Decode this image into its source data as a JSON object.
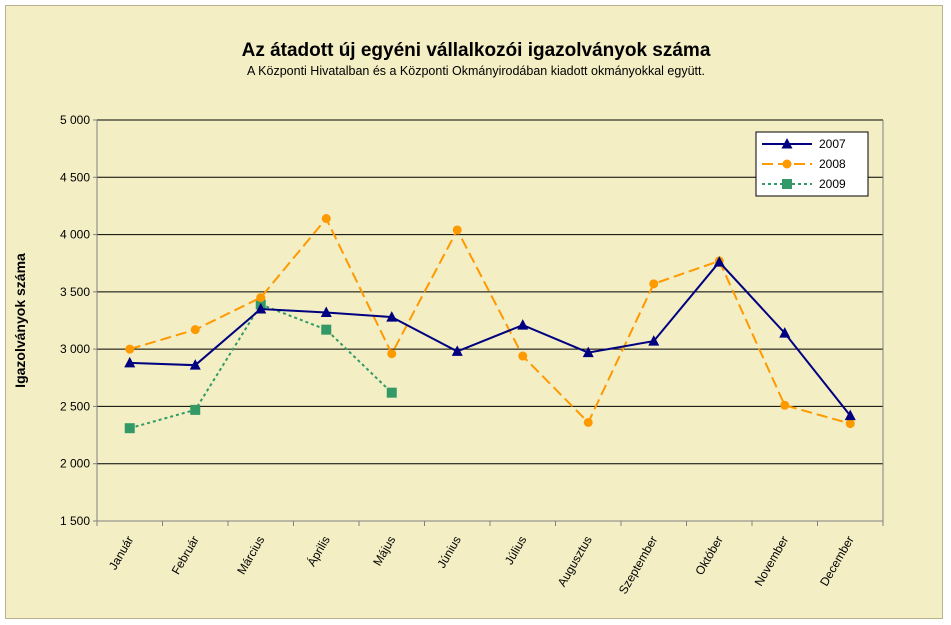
{
  "chart_data": {
    "type": "line",
    "title": "Az átadott új egyéni vállalkozói  igazolványok száma",
    "subtitle": "A Központi Hivatalban és a Központi Okmányirodában kiadott okmányokkal együtt.",
    "xlabel": "",
    "ylabel": "Igazolványok száma",
    "ylim": [
      1500,
      5000
    ],
    "yticks": [
      1500,
      2000,
      2500,
      3000,
      3500,
      4000,
      4500,
      5000
    ],
    "ytick_labels": [
      "1 500",
      "2 000",
      "2 500",
      "3 000",
      "3 500",
      "4 000",
      "4 500",
      "5 000"
    ],
    "grid": "horizontal",
    "legend_position": "top-right",
    "categories": [
      "Január",
      "Február",
      "Március",
      "Április",
      "Május",
      "Június",
      "Július",
      "Augusztus",
      "Szeptember",
      "Október",
      "November",
      "December"
    ],
    "series": [
      {
        "name": "2007",
        "color": "#000080",
        "line_style": "solid",
        "marker": "triangle",
        "values": [
          2880,
          2860,
          3350,
          3320,
          3280,
          2980,
          3210,
          2970,
          3070,
          3760,
          3140,
          2420
        ]
      },
      {
        "name": "2008",
        "color": "#ff9900",
        "line_style": "dashed",
        "marker": "circle",
        "values": [
          3000,
          3170,
          3450,
          4140,
          2960,
          4040,
          2940,
          2360,
          3570,
          3770,
          2510,
          2350
        ]
      },
      {
        "name": "2009",
        "color": "#339966",
        "line_style": "dotted",
        "marker": "square",
        "values": [
          2310,
          2470,
          3390,
          3170,
          2620,
          null,
          null,
          null,
          null,
          null,
          null,
          null
        ]
      }
    ]
  }
}
